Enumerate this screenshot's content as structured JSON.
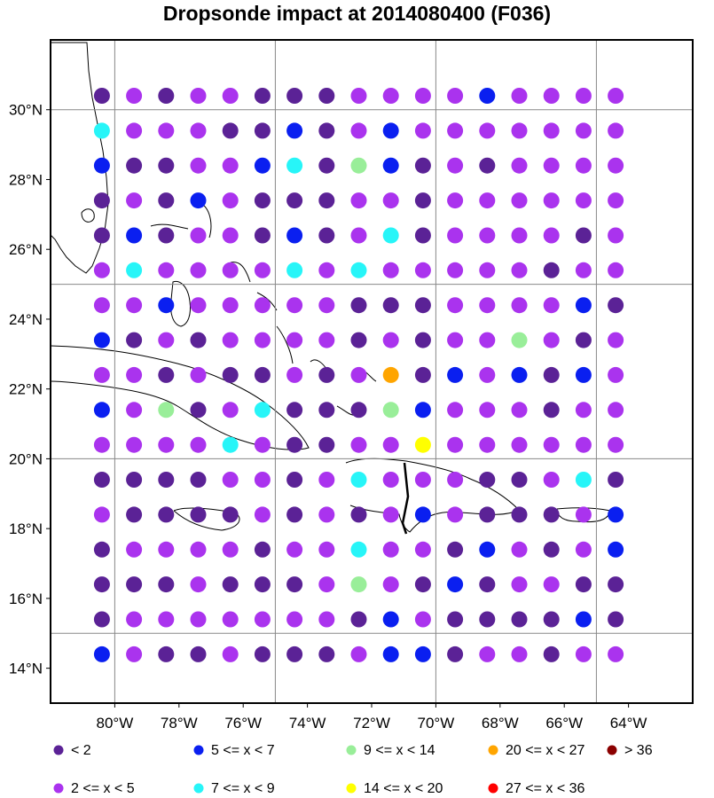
{
  "title": "Dropsonde impact at 2014080400 (F036)",
  "map": {
    "lon_range": [
      -82,
      -62
    ],
    "lat_range": [
      13,
      32
    ],
    "lon_ticks": [
      -80,
      -78,
      -76,
      -74,
      -72,
      -70,
      -68,
      -66,
      -64
    ],
    "lon_tick_labels": [
      "80°W",
      "78°W",
      "76°W",
      "74°W",
      "72°W",
      "70°W",
      "68°W",
      "66°W",
      "64°W"
    ],
    "lat_ticks": [
      14,
      16,
      18,
      20,
      22,
      24,
      26,
      28,
      30
    ],
    "lat_tick_labels": [
      "14°N",
      "16°N",
      "18°N",
      "20°N",
      "22°N",
      "24°N",
      "26°N",
      "28°N",
      "30°N"
    ],
    "grid_lons": [
      -80,
      -75,
      -70,
      -65
    ],
    "grid_lats": [
      15,
      20,
      25,
      30
    ],
    "point_lons": [
      -80.4,
      -79.4,
      -78.4,
      -77.4,
      -76.4,
      -75.4,
      -74.4,
      -73.4,
      -72.4,
      -71.4,
      -70.4,
      -69.4,
      -68.4,
      -67.4,
      -66.4,
      -65.4,
      -64.4
    ],
    "point_lats": [
      30.4,
      29.4,
      28.4,
      27.4,
      26.4,
      25.4,
      24.4,
      23.4,
      22.4,
      21.4,
      20.4,
      19.4,
      18.4,
      17.4,
      16.4,
      15.4,
      14.4
    ]
  },
  "legend": [
    {
      "label": "<  2",
      "color": "#5b2296"
    },
    {
      "label": "2 <= x <  5",
      "color": "#aa33ee"
    },
    {
      "label": "5 <= x <  7",
      "color": "#0a1ff0"
    },
    {
      "label": "7 <= x <  9",
      "color": "#27f5f8"
    },
    {
      "label": "9 <= x < 14",
      "color": "#99ee99"
    },
    {
      "label": "14 <= x < 20",
      "color": "#ffff00"
    },
    {
      "label": "20 <= x < 27",
      "color": "#ffa500"
    },
    {
      "label": "27 <= x < 36",
      "color": "#ff0000"
    },
    {
      "label": "> 36",
      "color": "#8b0000"
    }
  ],
  "impact_grid": [
    "01011000111121111",
    "31110020121111111",
    "20011230420101111",
    "01021000110111111",
    "02011020130111101",
    "13111131311111011",
    "11211111000111120",
    "20101111010114101",
    "11010010160212021",
    "21401300042111011",
    "11113100115111111",
    "00001101311100130",
    "10000101012100012",
    "01111011311021012",
    "00010001410201100",
    "01111111021000020",
    "21001000122011011"
  ]
}
